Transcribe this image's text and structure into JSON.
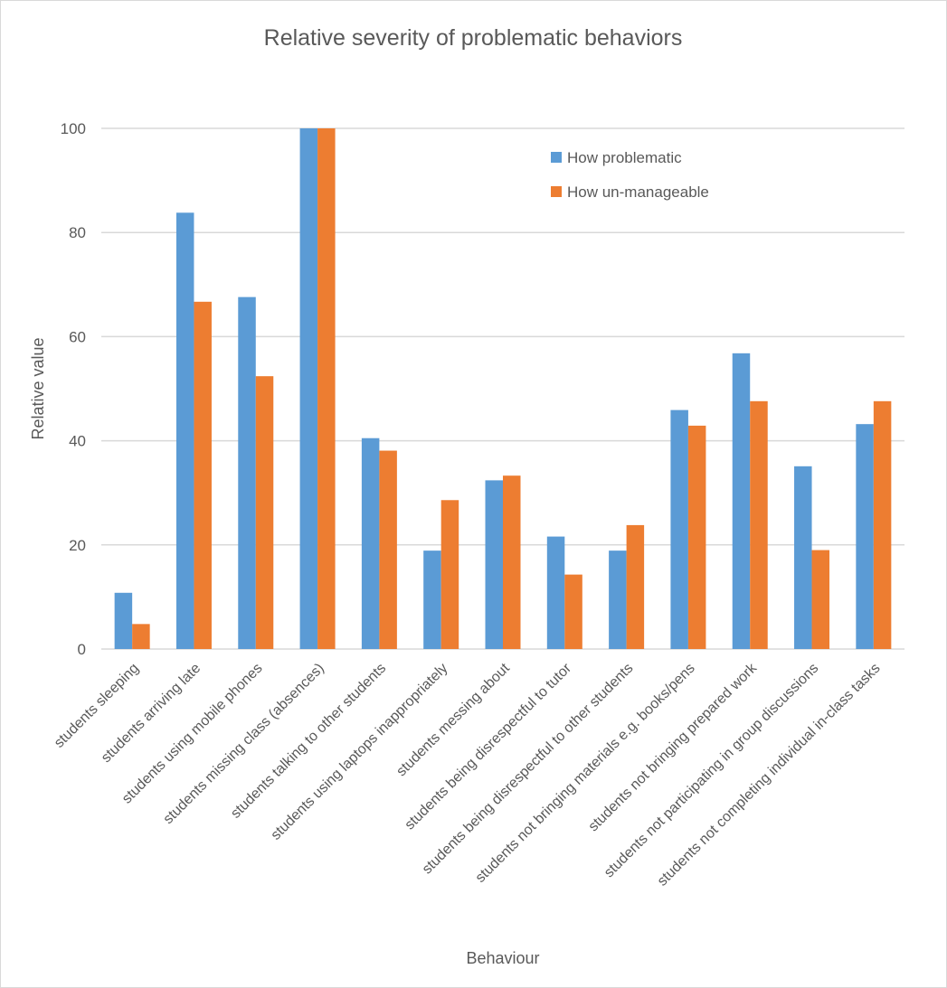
{
  "chart_data": {
    "type": "bar",
    "title": "Relative severity of problematic behaviors",
    "xlabel": "Behaviour",
    "ylabel": "Relative  value",
    "ylim": [
      0,
      100
    ],
    "yticks": [
      0,
      20,
      40,
      60,
      80,
      100
    ],
    "grid": true,
    "legend_position": "top-right",
    "categories": [
      "students sleeping",
      "students arriving late",
      "students using mobile phones",
      "students missing class (absences)",
      "students talking to other students",
      "students using laptops inappropriately",
      "students messing about",
      "students being disrespectful to tutor",
      "students being disrespectful to other students",
      "students not bringing materials e.g. books/pens",
      "students not bringing prepared work",
      "students not participating in group discussions",
      "students not completing individual in-class tasks"
    ],
    "series": [
      {
        "name": "How problematic",
        "color": "#5b9bd5",
        "values": [
          10.8,
          83.8,
          67.6,
          100,
          40.5,
          18.9,
          32.4,
          21.6,
          18.9,
          45.9,
          56.8,
          35.1,
          43.2
        ]
      },
      {
        "name": "How un-manageable",
        "color": "#ed7d31",
        "values": [
          4.8,
          66.7,
          52.4,
          100,
          38.1,
          28.6,
          33.3,
          14.3,
          23.8,
          42.9,
          47.6,
          19.0,
          47.6
        ]
      }
    ]
  }
}
